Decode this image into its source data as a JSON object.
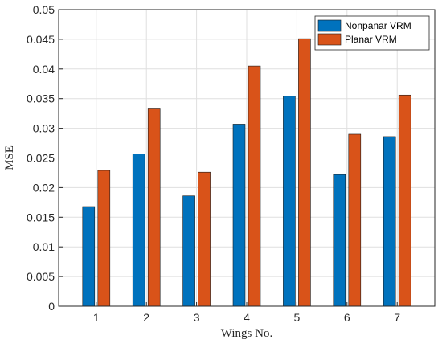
{
  "chart_data": {
    "type": "bar",
    "title": "",
    "xlabel": "Wings No.",
    "ylabel": "MSE",
    "categories": [
      "1",
      "2",
      "3",
      "4",
      "5",
      "6",
      "7"
    ],
    "series": [
      {
        "name": "Nonpanar VRM",
        "color": "#0072BD",
        "values": [
          0.0168,
          0.0257,
          0.0186,
          0.0307,
          0.0354,
          0.0222,
          0.0286
        ]
      },
      {
        "name": "Planar VRM",
        "color": "#D95319",
        "values": [
          0.0229,
          0.0334,
          0.0226,
          0.0405,
          0.0451,
          0.029,
          0.0356
        ]
      }
    ],
    "ylim": [
      0,
      0.05
    ],
    "yticks": [
      "0",
      "0.005",
      "0.01",
      "0.015",
      "0.02",
      "0.025",
      "0.03",
      "0.035",
      "0.04",
      "0.045",
      "0.05"
    ],
    "grid": true,
    "legend_position": "top-right"
  }
}
